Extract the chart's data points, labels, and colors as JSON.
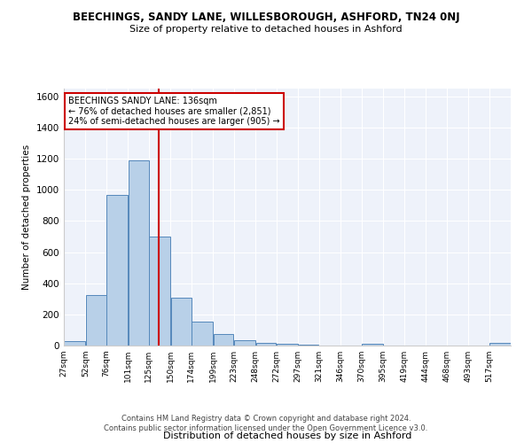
{
  "title": "BEECHINGS, SANDY LANE, WILLESBOROUGH, ASHFORD, TN24 0NJ",
  "subtitle": "Size of property relative to detached houses in Ashford",
  "xlabel": "Distribution of detached houses by size in Ashford",
  "ylabel": "Number of detached properties",
  "footer_line1": "Contains HM Land Registry data © Crown copyright and database right 2024.",
  "footer_line2": "Contains public sector information licensed under the Open Government Licence v3.0.",
  "annotation_line1": "BEECHINGS SANDY LANE: 136sqm",
  "annotation_line2": "← 76% of detached houses are smaller (2,851)",
  "annotation_line3": "24% of semi-detached houses are larger (905) →",
  "vline_x": 136,
  "bar_color": "#b8d0e8",
  "bar_edge_color": "#5588bb",
  "vline_color": "#cc0000",
  "background_color": "#eef2fa",
  "categories": [
    "27sqm",
    "52sqm",
    "76sqm",
    "101sqm",
    "125sqm",
    "150sqm",
    "174sqm",
    "199sqm",
    "223sqm",
    "248sqm",
    "272sqm",
    "297sqm",
    "321sqm",
    "346sqm",
    "370sqm",
    "395sqm",
    "419sqm",
    "444sqm",
    "468sqm",
    "493sqm",
    "517sqm"
  ],
  "bin_edges": [
    27,
    52,
    76,
    101,
    125,
    150,
    174,
    199,
    223,
    248,
    272,
    297,
    321,
    346,
    370,
    395,
    419,
    444,
    468,
    493,
    517,
    542
  ],
  "values": [
    30,
    325,
    970,
    1190,
    700,
    305,
    155,
    75,
    35,
    15,
    10,
    5,
    0,
    0,
    10,
    0,
    0,
    0,
    0,
    0,
    15
  ],
  "ylim": [
    0,
    1650
  ],
  "yticks": [
    0,
    200,
    400,
    600,
    800,
    1000,
    1200,
    1400,
    1600
  ]
}
